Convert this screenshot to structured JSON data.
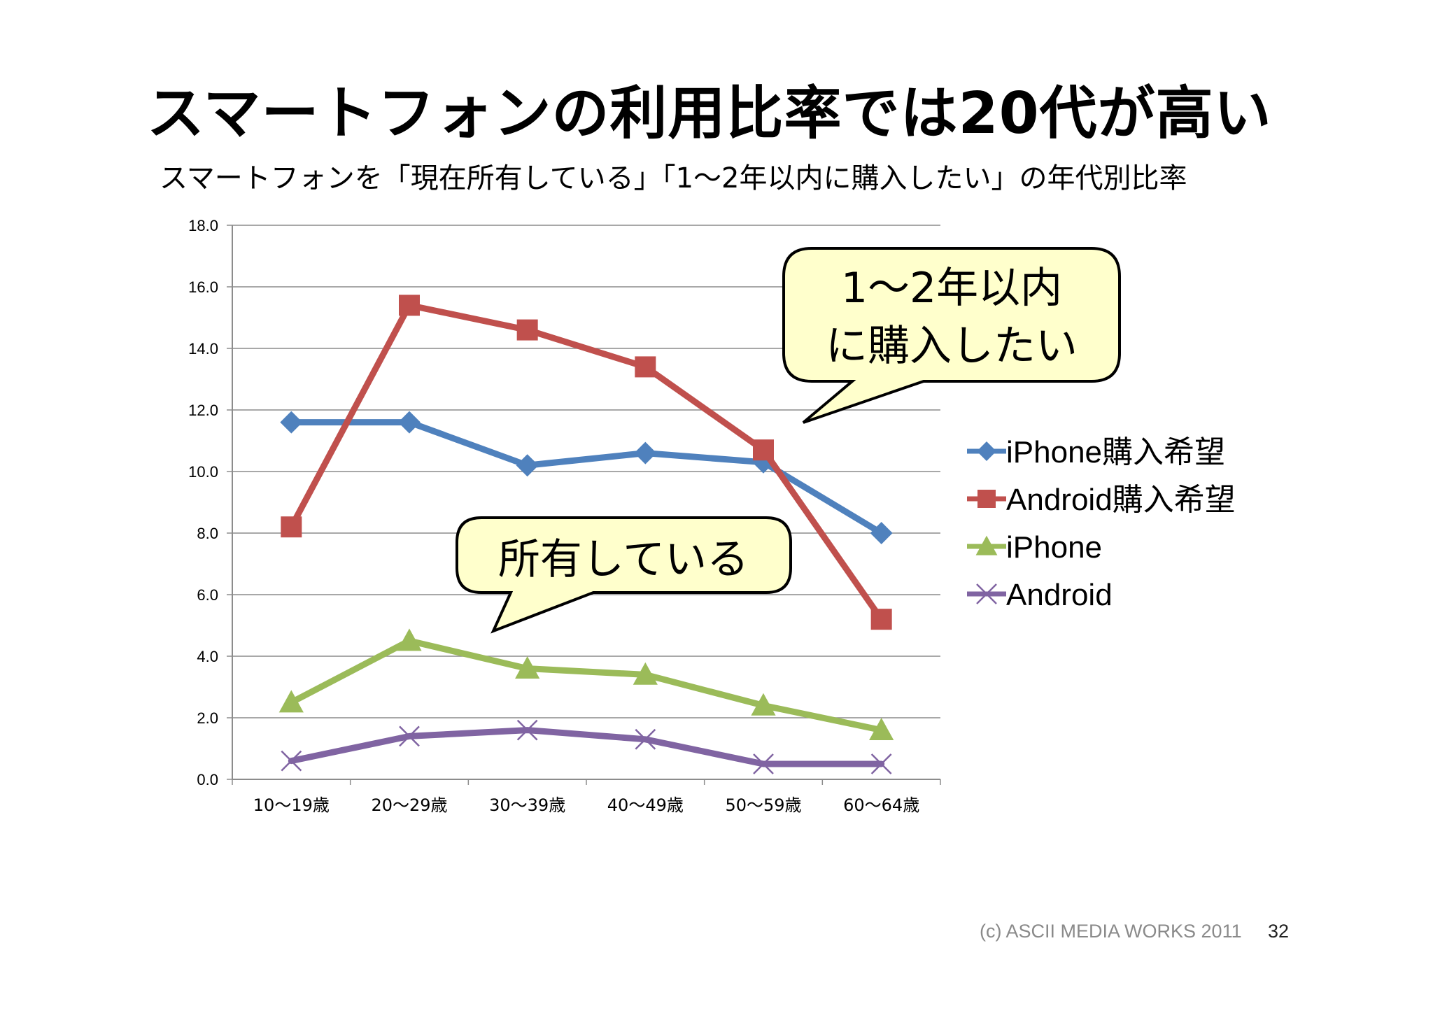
{
  "slide": {
    "title": "スマートフォンの利用比率では20代が高い",
    "subtitle": "スマートフォンを「現在所有している」「1〜2年以内に購入したい」の年代別比率",
    "footer": "(c) ASCII MEDIA WORKS 2011",
    "page_number": "32"
  },
  "callouts": {
    "purchase": {
      "line1": "1〜2年以内",
      "line2": "に購入したい"
    },
    "owned": {
      "text": "所有している"
    }
  },
  "colors": {
    "iphone_purchase": "#4f81bd",
    "android_purchase": "#c0504d",
    "iphone": "#9bbb59",
    "android": "#8064a2",
    "callout_fill": "#ffffcc",
    "grid": "#8c8c8c"
  },
  "chart_data": {
    "type": "line",
    "categories": [
      "10〜19歳",
      "20〜29歳",
      "30〜39歳",
      "40〜49歳",
      "50〜59歳",
      "60〜64歳"
    ],
    "ylim": [
      0,
      18
    ],
    "yticks": [
      "0.0",
      "2.0",
      "4.0",
      "6.0",
      "8.0",
      "10.0",
      "12.0",
      "14.0",
      "16.0",
      "18.0"
    ],
    "grid": true,
    "legend_position": "right",
    "series": [
      {
        "name": "iPhone購入希望",
        "marker": "diamond",
        "values": [
          11.6,
          11.6,
          10.2,
          10.6,
          10.3,
          8.0
        ]
      },
      {
        "name": "Android購入希望",
        "marker": "square",
        "values": [
          8.2,
          15.4,
          14.6,
          13.4,
          10.7,
          5.2
        ]
      },
      {
        "name": "iPhone",
        "marker": "triangle",
        "values": [
          2.5,
          4.5,
          3.6,
          3.4,
          2.4,
          1.6
        ]
      },
      {
        "name": "Android",
        "marker": "x",
        "values": [
          0.6,
          1.4,
          1.6,
          1.3,
          0.5,
          0.5
        ]
      }
    ]
  }
}
